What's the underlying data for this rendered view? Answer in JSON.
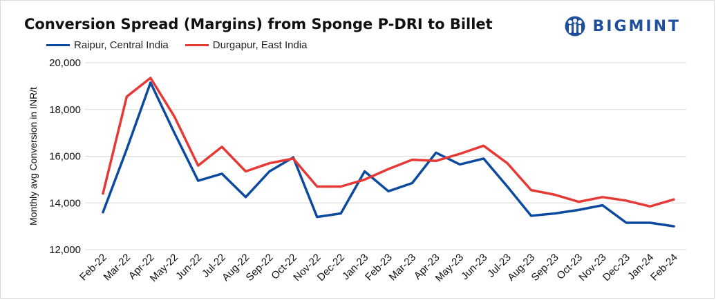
{
  "brand": {
    "name": "BIGMINT",
    "icon": "bigmint-people-icon",
    "color": "#1f4e9c"
  },
  "chart_data": {
    "type": "line",
    "title": "Conversion Spread (Margins) from Sponge P-DRI to Billet",
    "xlabel": "",
    "ylabel": "Monthly avg Conversion in INR/t",
    "ylim": [
      12000,
      20000
    ],
    "yticks": [
      12000,
      14000,
      16000,
      18000,
      20000
    ],
    "ytick_labels": [
      "12,000",
      "14,000",
      "16,000",
      "18,000",
      "20,000"
    ],
    "grid": true,
    "legend_position": "top-left",
    "categories": [
      "Feb-22",
      "Mar-22",
      "Apr-22",
      "May-22",
      "Jun-22",
      "Jul-22",
      "Aug-22",
      "Sep-22",
      "Oct-22",
      "Nov-22",
      "Dec-22",
      "Jan-23",
      "Feb-23",
      "Mar-23",
      "Apr-23",
      "May-23",
      "Jun-23",
      "Jul-23",
      "Aug-23",
      "Sep-23",
      "Oct-23",
      "Nov-23",
      "Dec-23",
      "Jan-24",
      "Feb-24"
    ],
    "series": [
      {
        "name": "Raipur, Central India",
        "color": "#0b4a9e",
        "values": [
          13600,
          16300,
          19150,
          17000,
          14950,
          15250,
          14250,
          15350,
          15950,
          13400,
          13550,
          15350,
          14500,
          14850,
          16150,
          15650,
          15900,
          14700,
          13450,
          13550,
          13700,
          13900,
          13150,
          13150,
          13000
        ]
      },
      {
        "name": "Durgapur, East India",
        "color": "#e53935",
        "values": [
          14400,
          18550,
          19350,
          17700,
          15600,
          16400,
          15350,
          15700,
          15900,
          14700,
          14700,
          15000,
          15450,
          15850,
          15800,
          16100,
          16450,
          15700,
          14550,
          14350,
          14050,
          14250,
          14100,
          13850,
          14150
        ]
      }
    ]
  }
}
